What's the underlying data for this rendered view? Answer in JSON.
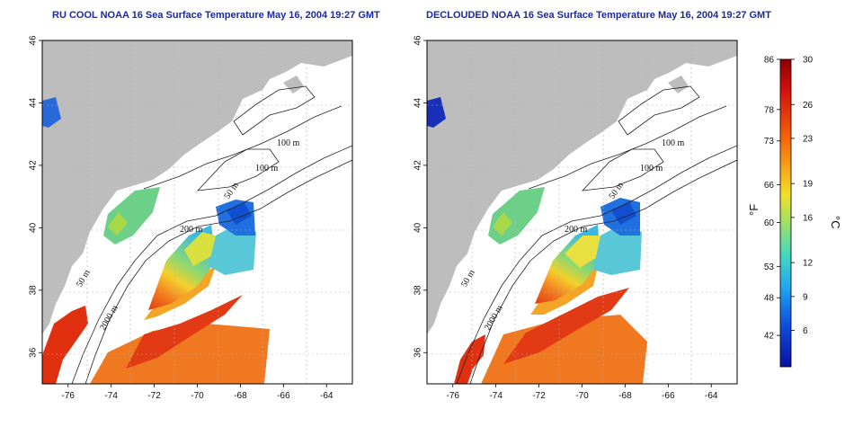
{
  "maps": [
    {
      "title": "RU COOL NOAA 16 Sea Surface Temperature May 16, 2004 19:27 GMT",
      "contour_labels": [
        "100 m",
        "100 m",
        "50 m",
        "200 m",
        "50 m",
        "2000 m"
      ]
    },
    {
      "title": "DECLOUDED NOAA 16 Sea Surface Temperature May 16, 2004 19:27 GMT",
      "contour_labels": [
        "100 m",
        "100 m",
        "50 m",
        "200 m",
        "50 m",
        "2000 m"
      ]
    }
  ],
  "axes": {
    "lon_ticks": [
      "-76",
      "-74",
      "-72",
      "-70",
      "-68",
      "-66",
      "-64"
    ],
    "lat_ticks": [
      "46",
      "44",
      "42",
      "40",
      "38",
      "36"
    ],
    "lon_range": [
      -77.2,
      -62.8
    ],
    "lat_range": [
      35.0,
      46.0
    ]
  },
  "colorbar": {
    "fahrenheit_label": "°F",
    "celsius_label": "°C",
    "fahrenheit_ticks": [
      "86",
      "78",
      "73",
      "66",
      "60",
      "53",
      "48",
      "42"
    ],
    "celsius_ticks": [
      "30",
      "26",
      "23",
      "19",
      "16",
      "12",
      "9",
      "6"
    ],
    "colors": [
      "#8b0000",
      "#d41010",
      "#f25a0a",
      "#f7a81a",
      "#f0e02a",
      "#a8e060",
      "#40d8c0",
      "#22a8f0",
      "#1050e0",
      "#0a10a0"
    ]
  },
  "colors": {
    "land": "#bdbdbd",
    "ocean_clear": "#ffffff",
    "title": "#1a2aa0",
    "grid": "#b0b0b0"
  }
}
